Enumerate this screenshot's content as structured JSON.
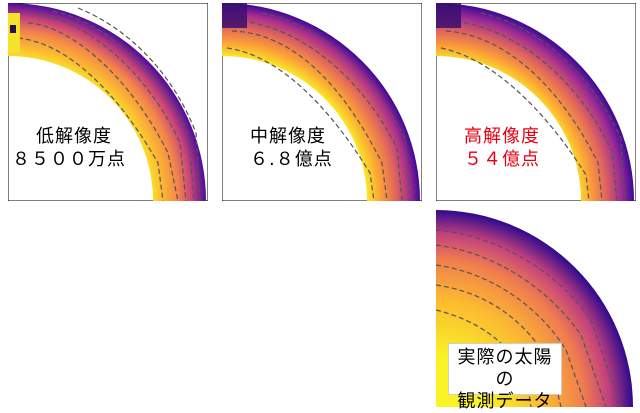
{
  "panels": [
    {
      "label_line1": "低解像度",
      "label_line2": "８５００万点",
      "highlight": false
    },
    {
      "label_line1": "中解像度",
      "label_line2": "６.８億点",
      "highlight": false
    },
    {
      "label_line1": "高解像度",
      "label_line2": "５４億点",
      "highlight": true
    }
  ],
  "observation": {
    "line1": "実際の太陽の",
    "line2": "観測データ"
  },
  "colors": {
    "highlight_text": "#e60012",
    "contour": "#555555"
  },
  "colormap": "plasma"
}
